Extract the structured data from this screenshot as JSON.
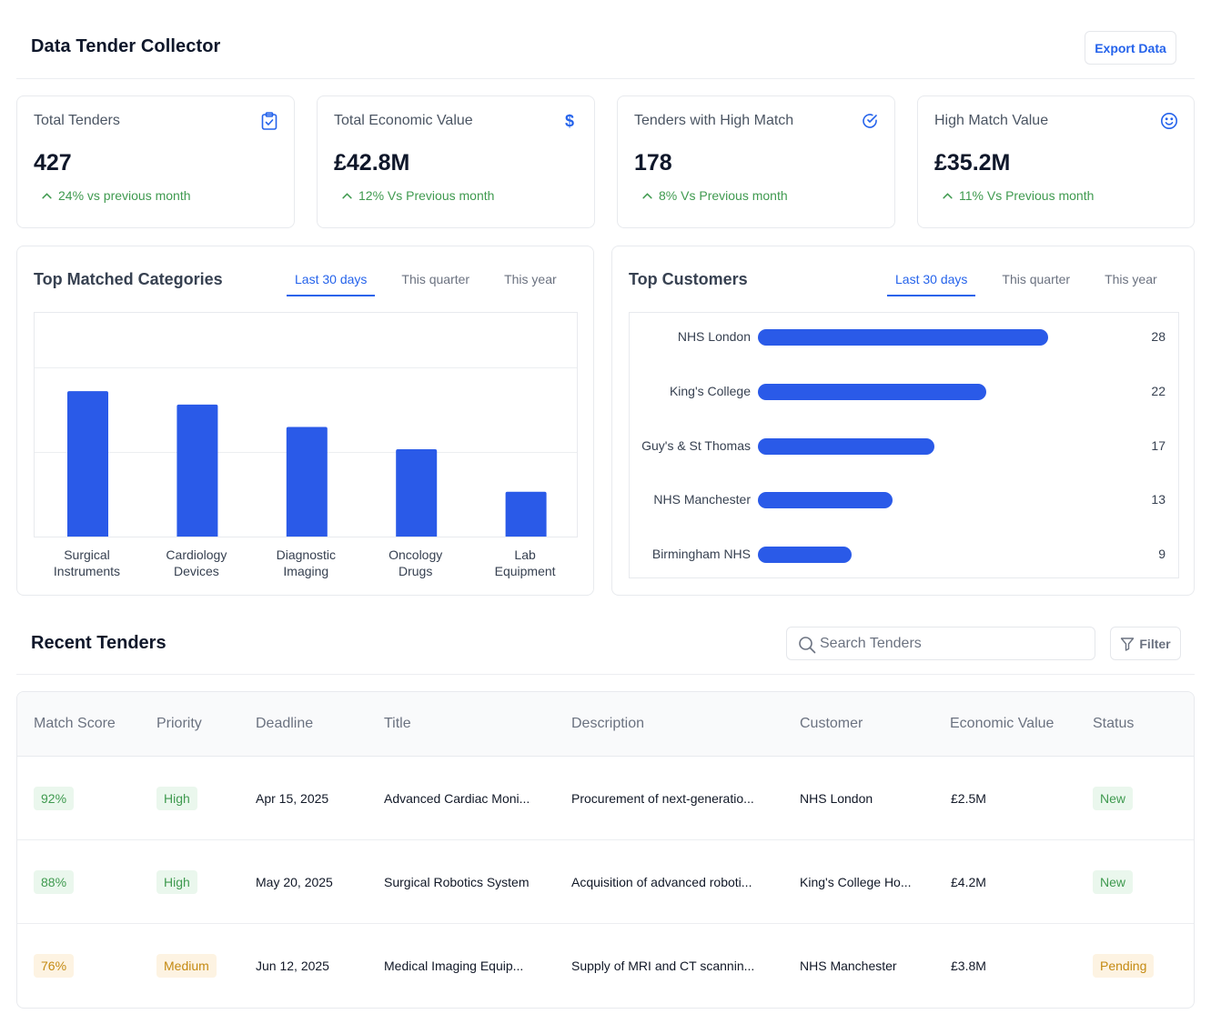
{
  "header": {
    "title": "Data Tender Collector",
    "export_label": "Export Data"
  },
  "stats": [
    {
      "label": "Total Tenders",
      "value": "427",
      "delta": "24% vs previous month",
      "icon": "clipboard-check-icon"
    },
    {
      "label": "Total Economic Value",
      "value": "£42.8M",
      "delta": "12% Vs Previous month",
      "icon": "dollar-icon"
    },
    {
      "label": "Tenders with High Match",
      "value": "178",
      "delta": "8% Vs Previous month",
      "icon": "check-circle-icon"
    },
    {
      "label": "High Match Value",
      "value": "£35.2M",
      "delta": "11% Vs Previous month",
      "icon": "smile-icon"
    }
  ],
  "categories_panel": {
    "title": "Top Matched Categories",
    "tabs": [
      "Last 30 days",
      "This quarter",
      "This year"
    ],
    "active_tab": 0
  },
  "customers_panel": {
    "title": "Top Customers",
    "tabs": [
      "Last 30 days",
      "This quarter",
      "This year"
    ],
    "active_tab": 0
  },
  "chart_data": [
    {
      "type": "bar",
      "categories": [
        "Surgical\nInstruments",
        "Cardiology\nDevices",
        "Diagnostic\nImaging",
        "Oncology\nDrugs",
        "Lab\nEquipment"
      ],
      "values": [
        65,
        59,
        49,
        39,
        20
      ],
      "ylim": [
        0,
        100
      ],
      "grid": true,
      "color": "#2a5ae8"
    },
    {
      "type": "bar",
      "orientation": "horizontal",
      "categories": [
        "NHS London",
        "King's College",
        "Guy's & St Thomas",
        "NHS Manchester",
        "Birmingham NHS"
      ],
      "values": [
        28,
        22,
        17,
        13,
        9
      ],
      "xlim": [
        0,
        40
      ],
      "color": "#2a5ae8"
    }
  ],
  "recent": {
    "title": "Recent Tenders",
    "search_placeholder": "Search Tenders",
    "filter_label": "Filter",
    "columns": [
      "Match Score",
      "Priority",
      "Deadline",
      "Title",
      "Description",
      "Customer",
      "Economic Value",
      "Status"
    ],
    "rows": [
      {
        "score": "92%",
        "score_tone": "green",
        "priority": "High",
        "priority_tone": "green",
        "deadline": "Apr 15, 2025",
        "title": "Advanced Cardiac Moni...",
        "description": "Procurement of next-generatio...",
        "customer": "NHS London",
        "value": "£2.5M",
        "status": "New",
        "status_tone": "green"
      },
      {
        "score": "88%",
        "score_tone": "green",
        "priority": "High",
        "priority_tone": "green",
        "deadline": "May 20, 2025",
        "title": "Surgical Robotics System",
        "description": "Acquisition of advanced roboti...",
        "customer": "King's College Ho...",
        "value": "£4.2M",
        "status": "New",
        "status_tone": "green"
      },
      {
        "score": "76%",
        "score_tone": "amber",
        "priority": "Medium",
        "priority_tone": "amber",
        "deadline": "Jun 12, 2025",
        "title": "Medical Imaging Equip...",
        "description": "Supply of MRI and CT scannin...",
        "customer": "NHS Manchester",
        "value": "£3.8M",
        "status": "Pending",
        "status_tone": "amber"
      }
    ]
  },
  "colors": {
    "accent": "#2563eb",
    "bar": "#2a5ae8",
    "positive": "#3f9a4f",
    "warning": "#c48a12"
  }
}
